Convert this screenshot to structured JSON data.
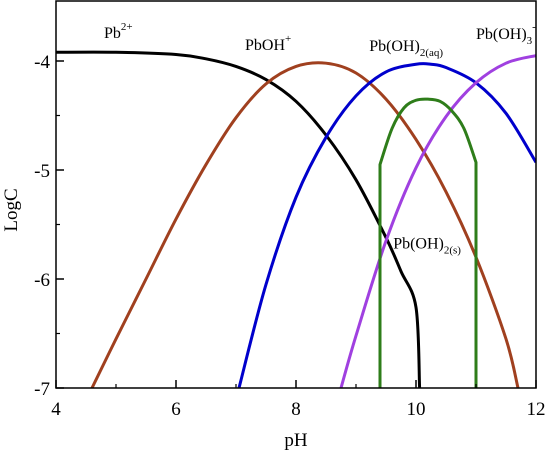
{
  "chart_data": {
    "type": "line",
    "title": "",
    "xlabel": "pH",
    "ylabel": "LogC",
    "xlim": [
      4,
      12
    ],
    "ylim": [
      -7,
      -3.5
    ],
    "x_ticks": [
      4,
      6,
      8,
      10,
      12
    ],
    "y_ticks": [
      -7,
      -6,
      -5,
      -4
    ],
    "x_tick_labels": [
      "4",
      "6",
      "8",
      "10",
      "12"
    ],
    "y_tick_labels": [
      "-7",
      "-6",
      "-5",
      "-4"
    ],
    "grid": false,
    "legend": "none",
    "series": [
      {
        "name": "Pb2+",
        "label": {
          "base": "Pb",
          "sup": "2+",
          "sub": ""
        },
        "color": "#000000",
        "x": [
          4.0,
          5.0,
          6.0,
          6.5,
          7.0,
          7.5,
          8.0,
          8.5,
          9.0,
          9.5,
          9.75,
          10.0,
          10.06
        ],
        "y": [
          -3.92,
          -3.92,
          -3.94,
          -3.98,
          -4.05,
          -4.17,
          -4.37,
          -4.68,
          -5.09,
          -5.62,
          -5.93,
          -6.26,
          -7.0
        ]
      },
      {
        "name": "PbOH+",
        "label": {
          "base": "PbOH",
          "sup": "+",
          "sub": ""
        },
        "color": "#a0401f",
        "x": [
          4.6,
          5.0,
          5.5,
          6.0,
          6.5,
          7.0,
          7.5,
          8.0,
          8.5,
          9.0,
          9.5,
          10.0,
          10.5,
          11.0,
          11.5,
          11.7
        ],
        "y": [
          -7.0,
          -6.55,
          -6.0,
          -5.45,
          -4.95,
          -4.52,
          -4.21,
          -4.05,
          -4.02,
          -4.11,
          -4.35,
          -4.72,
          -5.2,
          -5.8,
          -6.55,
          -7.0
        ]
      },
      {
        "name": "Pb(OH)2(aq)",
        "label": {
          "base": "Pb(OH)",
          "sup": "",
          "sub": "2(aq)"
        },
        "color": "#0000cc",
        "x": [
          7.05,
          7.5,
          8.0,
          8.5,
          9.0,
          9.5,
          10.0,
          10.25,
          10.5,
          11.0,
          11.5,
          12.0
        ],
        "y": [
          -7.0,
          -6.05,
          -5.25,
          -4.7,
          -4.32,
          -4.1,
          -4.03,
          -4.03,
          -4.06,
          -4.2,
          -4.48,
          -4.93
        ]
      },
      {
        "name": "Pb(OH)3-",
        "label": {
          "base": "Pb(OH)",
          "sup": "-",
          "sub": "3"
        },
        "color": "#a040e0",
        "x": [
          8.75,
          9.0,
          9.5,
          10.0,
          10.5,
          11.0,
          11.5,
          12.0
        ],
        "y": [
          -7.0,
          -6.52,
          -5.65,
          -4.98,
          -4.51,
          -4.2,
          -4.02,
          -3.95
        ]
      },
      {
        "name": "Pb(OH)2(s)",
        "label": {
          "base": "Pb(OH)",
          "sup": "",
          "sub": "2(s)"
        },
        "color": "#2e7d1a",
        "x": [
          9.4,
          9.4,
          9.6,
          9.8,
          10.0,
          10.2,
          10.4,
          10.6,
          10.8,
          11.0,
          11.0
        ],
        "y": [
          -7.0,
          -4.95,
          -4.62,
          -4.43,
          -4.36,
          -4.35,
          -4.37,
          -4.46,
          -4.62,
          -4.93,
          -7.0
        ]
      }
    ]
  }
}
